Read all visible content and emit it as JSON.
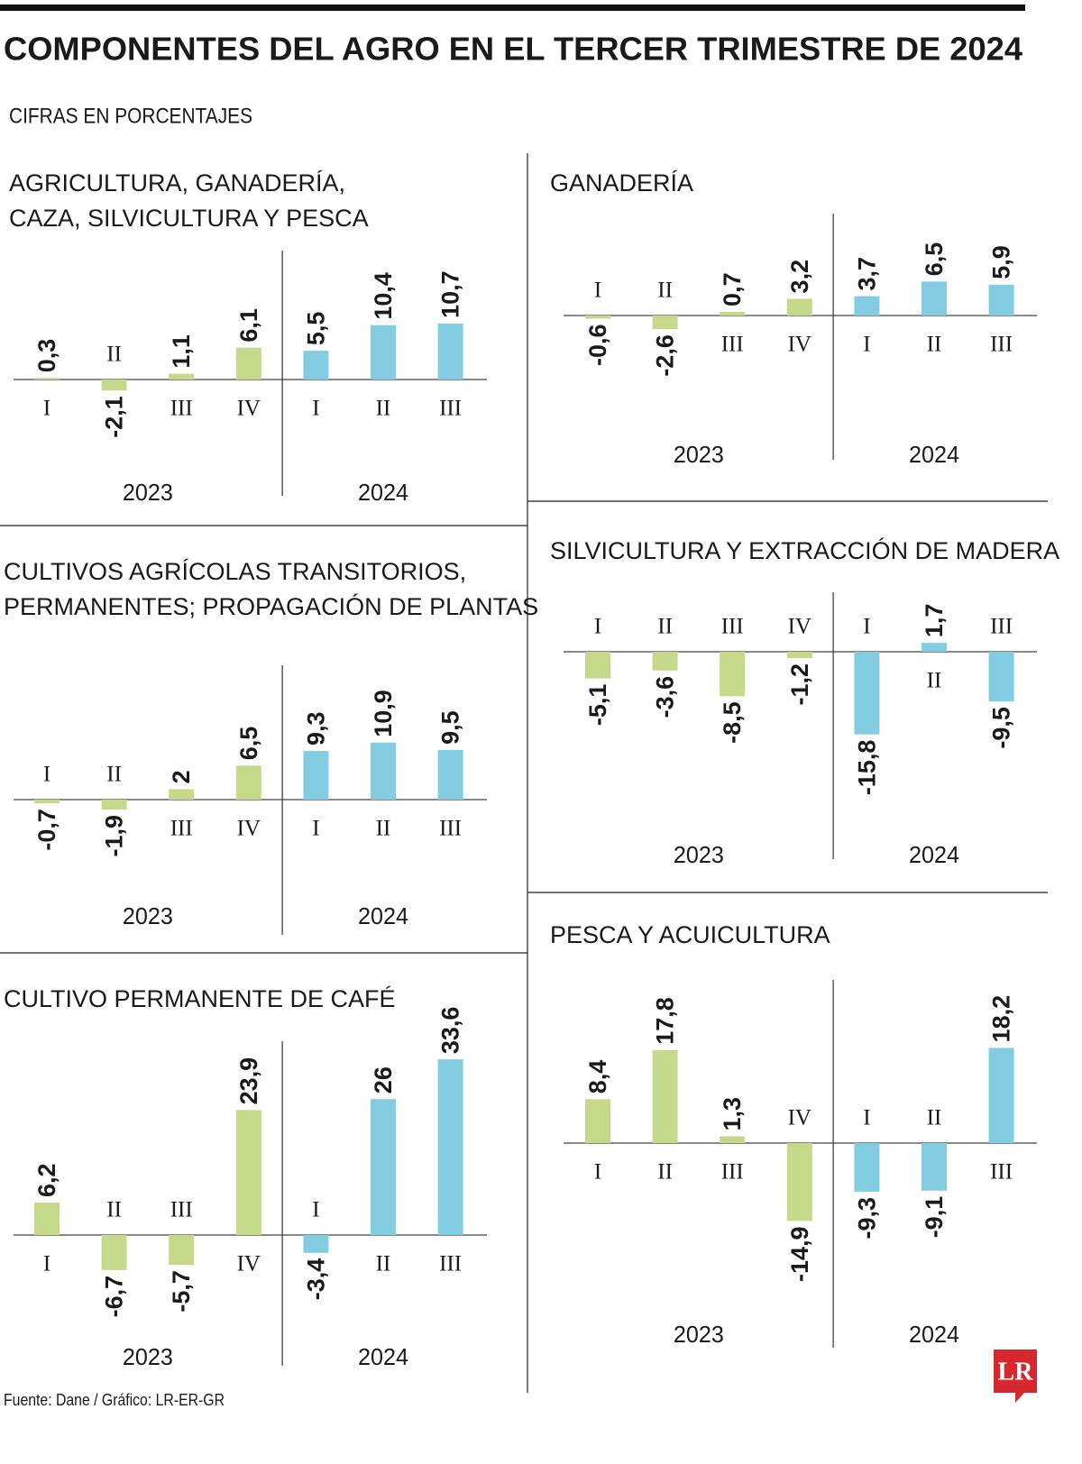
{
  "title": "COMPONENTES DEL AGRO EN EL TERCER TRIMESTRE DE 2024",
  "subtitle": "CIFRAS EN PORCENTAJES",
  "source": "Fuente: Dane / Gráfico: LR-ER-GR",
  "logo": "LR",
  "chart_data": [
    {
      "type": "bar",
      "title": [
        "AGRICULTURA, GANADERÍA,",
        "CAZA, SILVICULTURA Y PESCA"
      ],
      "categories": [
        "I",
        "II",
        "III",
        "IV",
        "I",
        "II",
        "III"
      ],
      "series": [
        {
          "name": "2023",
          "color": "#c5d98a",
          "values": [
            0.3,
            -2.1,
            1.1,
            6.1,
            null,
            null,
            null
          ],
          "value_labels": [
            "0,3",
            "-2,1",
            "1,1",
            "6,1",
            null,
            null,
            null
          ]
        },
        {
          "name": "2024",
          "color": "#82cde2",
          "values": [
            null,
            null,
            null,
            null,
            5.5,
            10.4,
            10.7
          ],
          "value_labels": [
            null,
            null,
            null,
            null,
            "5,5",
            "10,4",
            "10,7"
          ]
        }
      ]
    },
    {
      "type": "bar",
      "title": [
        "GANADERÍA"
      ],
      "categories": [
        "I",
        "II",
        "III",
        "IV",
        "I",
        "II",
        "III"
      ],
      "series": [
        {
          "name": "2023",
          "color": "#c5d98a",
          "values": [
            -0.6,
            -2.6,
            0.7,
            3.2,
            null,
            null,
            null
          ],
          "value_labels": [
            "-0,6",
            "-2,6",
            "0,7",
            "3,2",
            null,
            null,
            null
          ]
        },
        {
          "name": "2024",
          "color": "#82cde2",
          "values": [
            null,
            null,
            null,
            null,
            3.7,
            6.5,
            5.9
          ],
          "value_labels": [
            null,
            null,
            null,
            null,
            "3,7",
            "6,5",
            "5,9"
          ]
        }
      ]
    },
    {
      "type": "bar",
      "title": [
        "CULTIVOS AGRÍCOLAS TRANSITORIOS,",
        "PERMANENTES; PROPAGACIÓN DE PLANTAS"
      ],
      "categories": [
        "I",
        "II",
        "III",
        "IV",
        "I",
        "II",
        "III"
      ],
      "series": [
        {
          "name": "2023",
          "color": "#c5d98a",
          "values": [
            -0.7,
            -1.9,
            2,
            6.5,
            null,
            null,
            null
          ],
          "value_labels": [
            "-0,7",
            "-1,9",
            "2",
            "6,5",
            null,
            null,
            null
          ]
        },
        {
          "name": "2024",
          "color": "#82cde2",
          "values": [
            null,
            null,
            null,
            null,
            9.3,
            10.9,
            9.5
          ],
          "value_labels": [
            null,
            null,
            null,
            null,
            "9,3",
            "10,9",
            "9,5"
          ]
        }
      ]
    },
    {
      "type": "bar",
      "title": [
        "SILVICULTURA Y EXTRACCIÓN DE MADERA"
      ],
      "categories": [
        "I",
        "II",
        "III",
        "IV",
        "I",
        "II",
        "III"
      ],
      "series": [
        {
          "name": "2023",
          "color": "#c5d98a",
          "values": [
            -5.1,
            -3.6,
            -8.5,
            -1.2,
            null,
            null,
            null
          ],
          "value_labels": [
            "-5,1",
            "-3,6",
            "-8,5",
            "-1,2",
            null,
            null,
            null
          ]
        },
        {
          "name": "2024",
          "color": "#82cde2",
          "values": [
            null,
            null,
            null,
            null,
            -15.8,
            1.7,
            -9.5
          ],
          "value_labels": [
            null,
            null,
            null,
            null,
            "-15,8",
            "1,7",
            "-9,5"
          ]
        }
      ]
    },
    {
      "type": "bar",
      "title": [
        "CULTIVO PERMANENTE DE CAFÉ"
      ],
      "categories": [
        "I",
        "II",
        "III",
        "IV",
        "I",
        "II",
        "III"
      ],
      "series": [
        {
          "name": "2023",
          "color": "#c5d98a",
          "values": [
            6.2,
            -6.7,
            -5.7,
            23.9,
            null,
            null,
            null
          ],
          "value_labels": [
            "6,2",
            "-6,7",
            "-5,7",
            "23,9",
            null,
            null,
            null
          ]
        },
        {
          "name": "2024",
          "color": "#82cde2",
          "values": [
            null,
            null,
            null,
            null,
            -3.4,
            26,
            33.6
          ],
          "value_labels": [
            null,
            null,
            null,
            null,
            "-3,4",
            "26",
            "33,6"
          ]
        }
      ]
    },
    {
      "type": "bar",
      "title": [
        "PESCA Y ACUICULTURA"
      ],
      "categories": [
        "I",
        "II",
        "III",
        "IV",
        "I",
        "II",
        "III"
      ],
      "series": [
        {
          "name": "2023",
          "color": "#c5d98a",
          "values": [
            8.4,
            17.8,
            1.3,
            -14.9,
            null,
            null,
            null
          ],
          "value_labels": [
            "8,4",
            "17,8",
            "1,3",
            "-14,9",
            null,
            null,
            null
          ]
        },
        {
          "name": "2024",
          "color": "#82cde2",
          "values": [
            null,
            null,
            null,
            null,
            -9.3,
            -9.1,
            18.2
          ],
          "value_labels": [
            null,
            null,
            null,
            null,
            "-9,3",
            "-9,1",
            "18,2"
          ]
        }
      ]
    }
  ]
}
